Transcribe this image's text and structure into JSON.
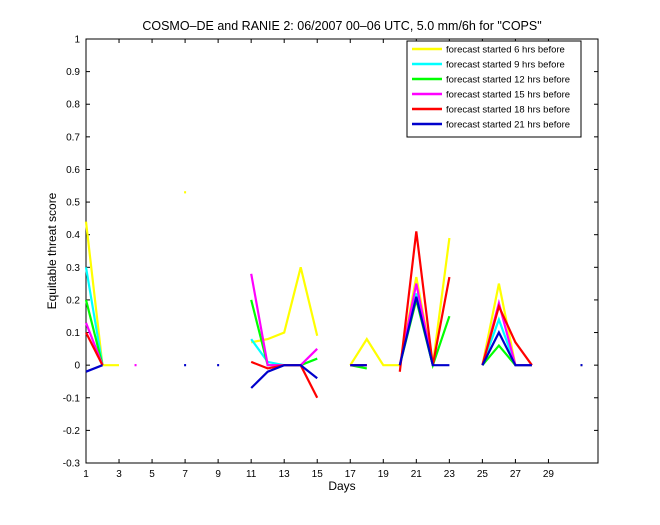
{
  "chart_data": {
    "type": "line",
    "title": "COSMO–DE and RANIE 2: 06/2007 00–06 UTC, 5.0 mm/6h for \"COPS\"",
    "xlabel": "Days",
    "ylabel": "Equitable threat score",
    "xlim": [
      1,
      32
    ],
    "ylim": [
      -0.3,
      1
    ],
    "xticks": [
      1,
      3,
      5,
      7,
      9,
      11,
      13,
      15,
      17,
      19,
      21,
      23,
      25,
      27,
      29
    ],
    "yticks": [
      -0.3,
      -0.2,
      -0.1,
      0,
      0.1,
      0.2,
      0.3,
      0.4,
      0.5,
      0.6,
      0.7,
      0.8,
      0.9,
      1
    ],
    "ytick_labels": [
      "-0.3",
      "-0.2",
      "-0.1",
      "0",
      "0.1",
      "0.2",
      "0.3",
      "0.4",
      "0.5",
      "0.6",
      "0.7",
      "0.8",
      "0.9",
      "1"
    ],
    "legend_position": "top-right",
    "series": [
      {
        "name": "forecast started 6 hrs before",
        "color": "#ffff00",
        "values": [
          0.44,
          0.0,
          0.0,
          null,
          null,
          null,
          0.53,
          null,
          null,
          null,
          0.07,
          0.08,
          0.1,
          0.3,
          0.09,
          null,
          0.0,
          0.08,
          0.0,
          0.0,
          0.27,
          0.0,
          0.39,
          null,
          0.0,
          0.25,
          0.0,
          0.0,
          null,
          null,
          0.0
        ]
      },
      {
        "name": "forecast started 9 hrs before",
        "color": "#00ffff",
        "values": [
          0.3,
          0.0,
          null,
          null,
          null,
          null,
          null,
          null,
          null,
          null,
          0.08,
          0.01,
          0.0,
          0.0,
          0.02,
          null,
          0.0,
          0.0,
          null,
          0.0,
          0.22,
          0.0,
          null,
          null,
          0.0,
          0.14,
          0.0,
          0.0,
          null,
          null,
          null
        ]
      },
      {
        "name": "forecast started 12 hrs before",
        "color": "#00ff00",
        "values": [
          0.2,
          0.0,
          null,
          null,
          null,
          null,
          null,
          null,
          null,
          null,
          0.2,
          0.0,
          0.0,
          0.0,
          0.02,
          null,
          0.0,
          -0.01,
          null,
          0.0,
          0.2,
          0.0,
          0.15,
          null,
          0.0,
          0.06,
          0.0,
          0.0,
          null,
          null,
          null
        ]
      },
      {
        "name": "forecast started 15 hrs before",
        "color": "#ff00ff",
        "values": [
          0.13,
          0.0,
          null,
          0.0,
          null,
          null,
          null,
          null,
          null,
          null,
          0.28,
          0.0,
          0.0,
          0.0,
          0.05,
          null,
          0.0,
          0.0,
          null,
          0.0,
          0.25,
          0.0,
          null,
          null,
          0.0,
          0.19,
          0.0,
          0.0,
          null,
          null,
          null
        ]
      },
      {
        "name": "forecast started 18 hrs before",
        "color": "#ff0000",
        "values": [
          0.1,
          0.0,
          null,
          null,
          null,
          null,
          null,
          null,
          null,
          null,
          0.01,
          -0.01,
          0.0,
          0.0,
          -0.1,
          null,
          0.0,
          0.0,
          null,
          -0.02,
          0.41,
          0.0,
          0.27,
          null,
          0.0,
          0.18,
          0.07,
          0.0,
          null,
          null,
          null
        ]
      },
      {
        "name": "forecast started 21 hrs before",
        "color": "#0000cc",
        "values": [
          -0.02,
          0.0,
          null,
          null,
          null,
          null,
          0.0,
          null,
          0.0,
          null,
          -0.07,
          -0.02,
          0.0,
          0.0,
          -0.04,
          null,
          0.0,
          0.0,
          null,
          0.0,
          0.21,
          0.0,
          0.0,
          null,
          0.0,
          0.1,
          0.0,
          0.0,
          null,
          null,
          0.0
        ]
      }
    ]
  }
}
